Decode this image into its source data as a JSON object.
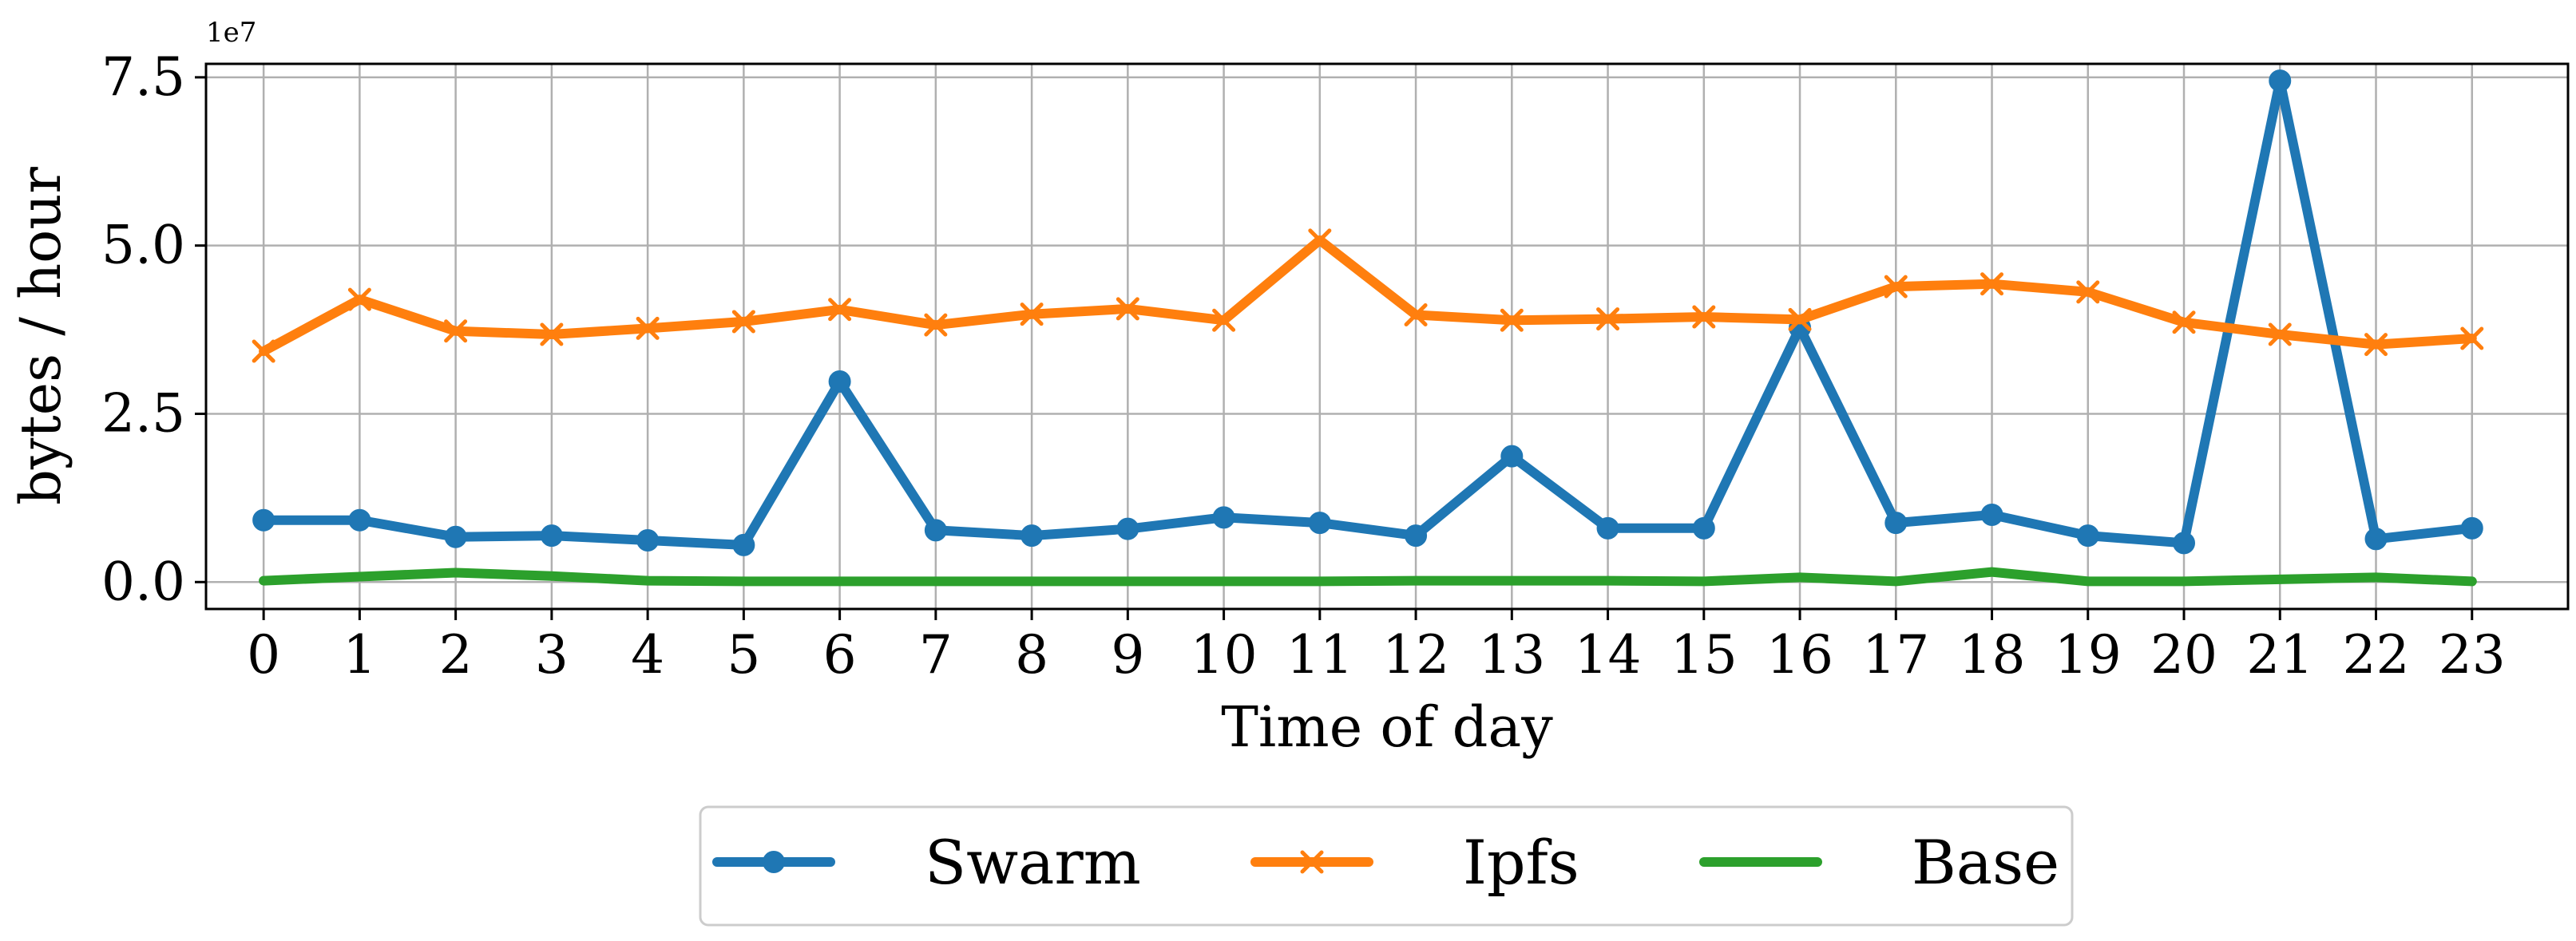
{
  "chart_data": {
    "type": "line",
    "title": "",
    "xlabel": "Time of day",
    "ylabel": "bytes / hour",
    "y_exponent_label": "1e7",
    "grid": true,
    "legend_position": "bottom-center",
    "x": [
      0,
      1,
      2,
      3,
      4,
      5,
      6,
      7,
      8,
      9,
      10,
      11,
      12,
      13,
      14,
      15,
      16,
      17,
      18,
      19,
      20,
      21,
      22,
      23
    ],
    "x_tick_labels": [
      "0",
      "1",
      "2",
      "3",
      "4",
      "5",
      "6",
      "7",
      "8",
      "9",
      "10",
      "11",
      "12",
      "13",
      "14",
      "15",
      "16",
      "17",
      "18",
      "19",
      "20",
      "21",
      "22",
      "23"
    ],
    "y_ticks": [
      0.0,
      2.5,
      5.0,
      7.5
    ],
    "y_tick_labels": [
      "0.0",
      "2.5",
      "5.0",
      "7.5"
    ],
    "xlim": [
      -0.6,
      24.0
    ],
    "ylim": [
      -0.4,
      7.7
    ],
    "series": [
      {
        "name": "Swarm",
        "color": "#1f77b4",
        "marker": "circle",
        "values": [
          0.92,
          0.92,
          0.67,
          0.69,
          0.62,
          0.55,
          2.98,
          0.77,
          0.69,
          0.79,
          0.96,
          0.88,
          0.69,
          1.87,
          0.8,
          0.8,
          3.78,
          0.88,
          1.0,
          0.69,
          0.58,
          7.45,
          0.64,
          0.8
        ]
      },
      {
        "name": "Ipfs",
        "color": "#ff7f0e",
        "marker": "x",
        "values": [
          3.43,
          4.2,
          3.73,
          3.68,
          3.77,
          3.87,
          4.05,
          3.82,
          3.98,
          4.06,
          3.89,
          5.08,
          3.97,
          3.89,
          3.91,
          3.94,
          3.9,
          4.39,
          4.43,
          4.31,
          3.86,
          3.68,
          3.53,
          3.62
        ]
      },
      {
        "name": "Base",
        "color": "#2ca02c",
        "marker": "none",
        "values": [
          0.02,
          0.08,
          0.14,
          0.09,
          0.02,
          0.01,
          0.01,
          0.01,
          0.01,
          0.01,
          0.01,
          0.01,
          0.02,
          0.02,
          0.02,
          0.01,
          0.07,
          0.01,
          0.15,
          0.01,
          0.01,
          0.04,
          0.07,
          0.01
        ]
      }
    ]
  }
}
